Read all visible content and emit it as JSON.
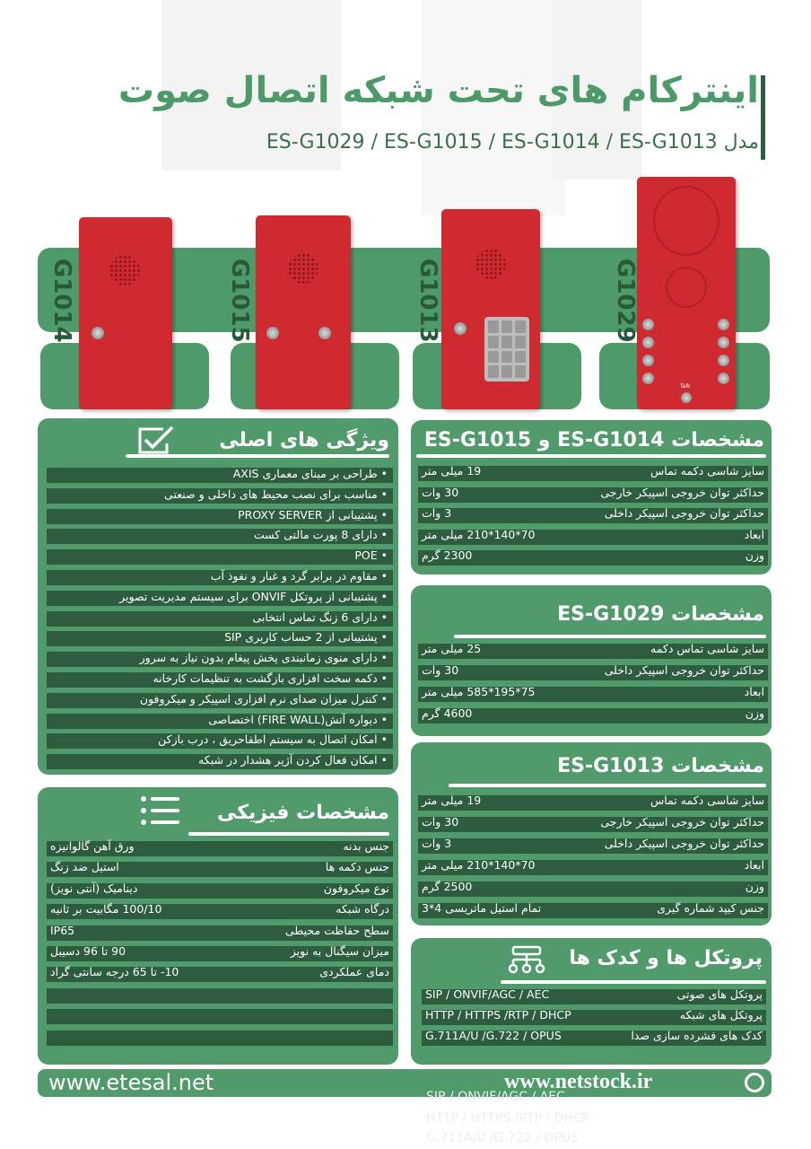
{
  "header": {
    "title": "اینترکام های تحت شبکه اتصال صوت",
    "subtitle": "مدل ES-G1029 / ES-G1015 / ES-G1014 / ES-G1013"
  },
  "products": [
    "G1014",
    "G1015",
    "G1013",
    "G1029"
  ],
  "device_text": {
    "talk": "Talk"
  },
  "features": {
    "title": "ویژگی های اصلی",
    "icon": "checkmark-box-icon",
    "items": [
      "• طراحی بر مبنای معماری AXIS",
      "• مناسب برای نصب محیط های داخلی و صنعتی",
      "• پشتیبانی از PROXY SERVER",
      "• دارای 8 پورت مالتی کست",
      "• POE",
      "• مقاوم در برابر گرد و غبار و نفوذ آب",
      "• پشتیبانی از پروتکل ONVIF برای سیستم مدیریت تصویر",
      "• دارای 6 زنگ تماس انتخابی",
      "• پشتیبانی از 2 حساب کاربری SIP",
      "• دارای منوی زمانبندی پخش پیغام بدون نیاز به سرور",
      "• دکمه سخت افزاری بازگشت به تنظیمات کارخانه",
      "• کنترل میزان صدای نرم افزاری اسپیکر و میکروفون",
      "• دیواره آتش(FIRE WALL) اختصاصی",
      "• امکان اتصال به سیستم اطفاحریق ، درب بازکن",
      "• امکان فعال کردن آژیر هشدار در شبکه"
    ]
  },
  "physical": {
    "title": "مشخصات فیزیکی",
    "icon": "list-icon",
    "rows": [
      {
        "label": "جنس بدنه",
        "value": "ورق آهن گالوانیزه"
      },
      {
        "label": "جنس دکمه ها",
        "value": "استیل ضد زنگ"
      },
      {
        "label": "نوع میکروفون",
        "value": "دینامیک (آنتی نویز)"
      },
      {
        "label": "درگاه شبکه",
        "value": "100/10 مگابیت بر ثانیه"
      },
      {
        "label": "سطح حفاظت محیطی",
        "value": "IP65"
      },
      {
        "label": "میزان سیگنال به نویز",
        "value": "90 تا 96 دسیبل"
      },
      {
        "label": "دمای عملکردی",
        "value": "10- تا  65 درجه سانتی گراد"
      }
    ]
  },
  "spec_g1014_g1015": {
    "title": "مشخصات ES-G1014  و ES-G1015",
    "rows": [
      {
        "label": "سایز شاسی  دکمه تماس",
        "value": "19 میلی متر"
      },
      {
        "label": "حداکثر توان خروجی اسپیکر خارجی",
        "value": "30 وات"
      },
      {
        "label": "حداکثر توان خروجی اسپیکر داخلی",
        "value": "3 وات"
      },
      {
        "label": "ابعاد",
        "value": "70*140*210  میلی متر"
      },
      {
        "label": "وزن",
        "value": "2300 گرم"
      }
    ]
  },
  "spec_g1029": {
    "title": "مشخصات ES-G1029",
    "rows": [
      {
        "label": "سایز شاسی  تماس دکمه",
        "value": "25 میلی متر"
      },
      {
        "label": "حداکثر توان خروجی اسپیکر داخلی",
        "value": "30 وات"
      },
      {
        "label": "ابعاد",
        "value": "75*195*585  میلی متر"
      },
      {
        "label": "وزن",
        "value": "4600 گرم"
      }
    ]
  },
  "spec_g1013": {
    "title": "مشخصات ES-G1013",
    "rows": [
      {
        "label": "سایز شاسی  دکمه تماس",
        "value": "19 میلی متر"
      },
      {
        "label": "حداکثر توان خروجی اسپیکر خارجی",
        "value": "30 وات"
      },
      {
        "label": "حداکثر توان خروجی اسپیکر داخلی",
        "value": "3 وات"
      },
      {
        "label": "ابعاد",
        "value": "70*140*210  میلی متر"
      },
      {
        "label": "وزن",
        "value": "2500 گرم"
      },
      {
        "label": "جنس کیپد شماره گیری",
        "value": "تمام استیل ماتریسی 4*3"
      }
    ]
  },
  "protocols": {
    "title": "پروتکل ها و کدک ها",
    "icon": "network-hierarchy-icon",
    "rows": [
      {
        "label": "پروتکل های صوتی",
        "value": "SIP / ONVIF/AGC / AEC"
      },
      {
        "label": "پروتکل های شبکه",
        "value": "HTTP / HTTPS /RTP / DHCP"
      },
      {
        "label": "کدک های فشرده سازی صدا",
        "value": "G.711A/U /G.722 / OPUS"
      }
    ]
  },
  "footer": {
    "website": "www.etesal.net",
    "watermark": "www.netstock.ir",
    "icon": "etesal-logo-icon"
  },
  "ghost": [
    "SIP / ONVIF/AGC / AEC",
    "HTTP / HTTPS /RTP / DHCP",
    "G.711A/U /G.722 / OPUS"
  ],
  "colors": {
    "card": "#519a6b",
    "row": "#2d5c3f",
    "title": "#4c9a69",
    "device": "#cf2a2f"
  }
}
